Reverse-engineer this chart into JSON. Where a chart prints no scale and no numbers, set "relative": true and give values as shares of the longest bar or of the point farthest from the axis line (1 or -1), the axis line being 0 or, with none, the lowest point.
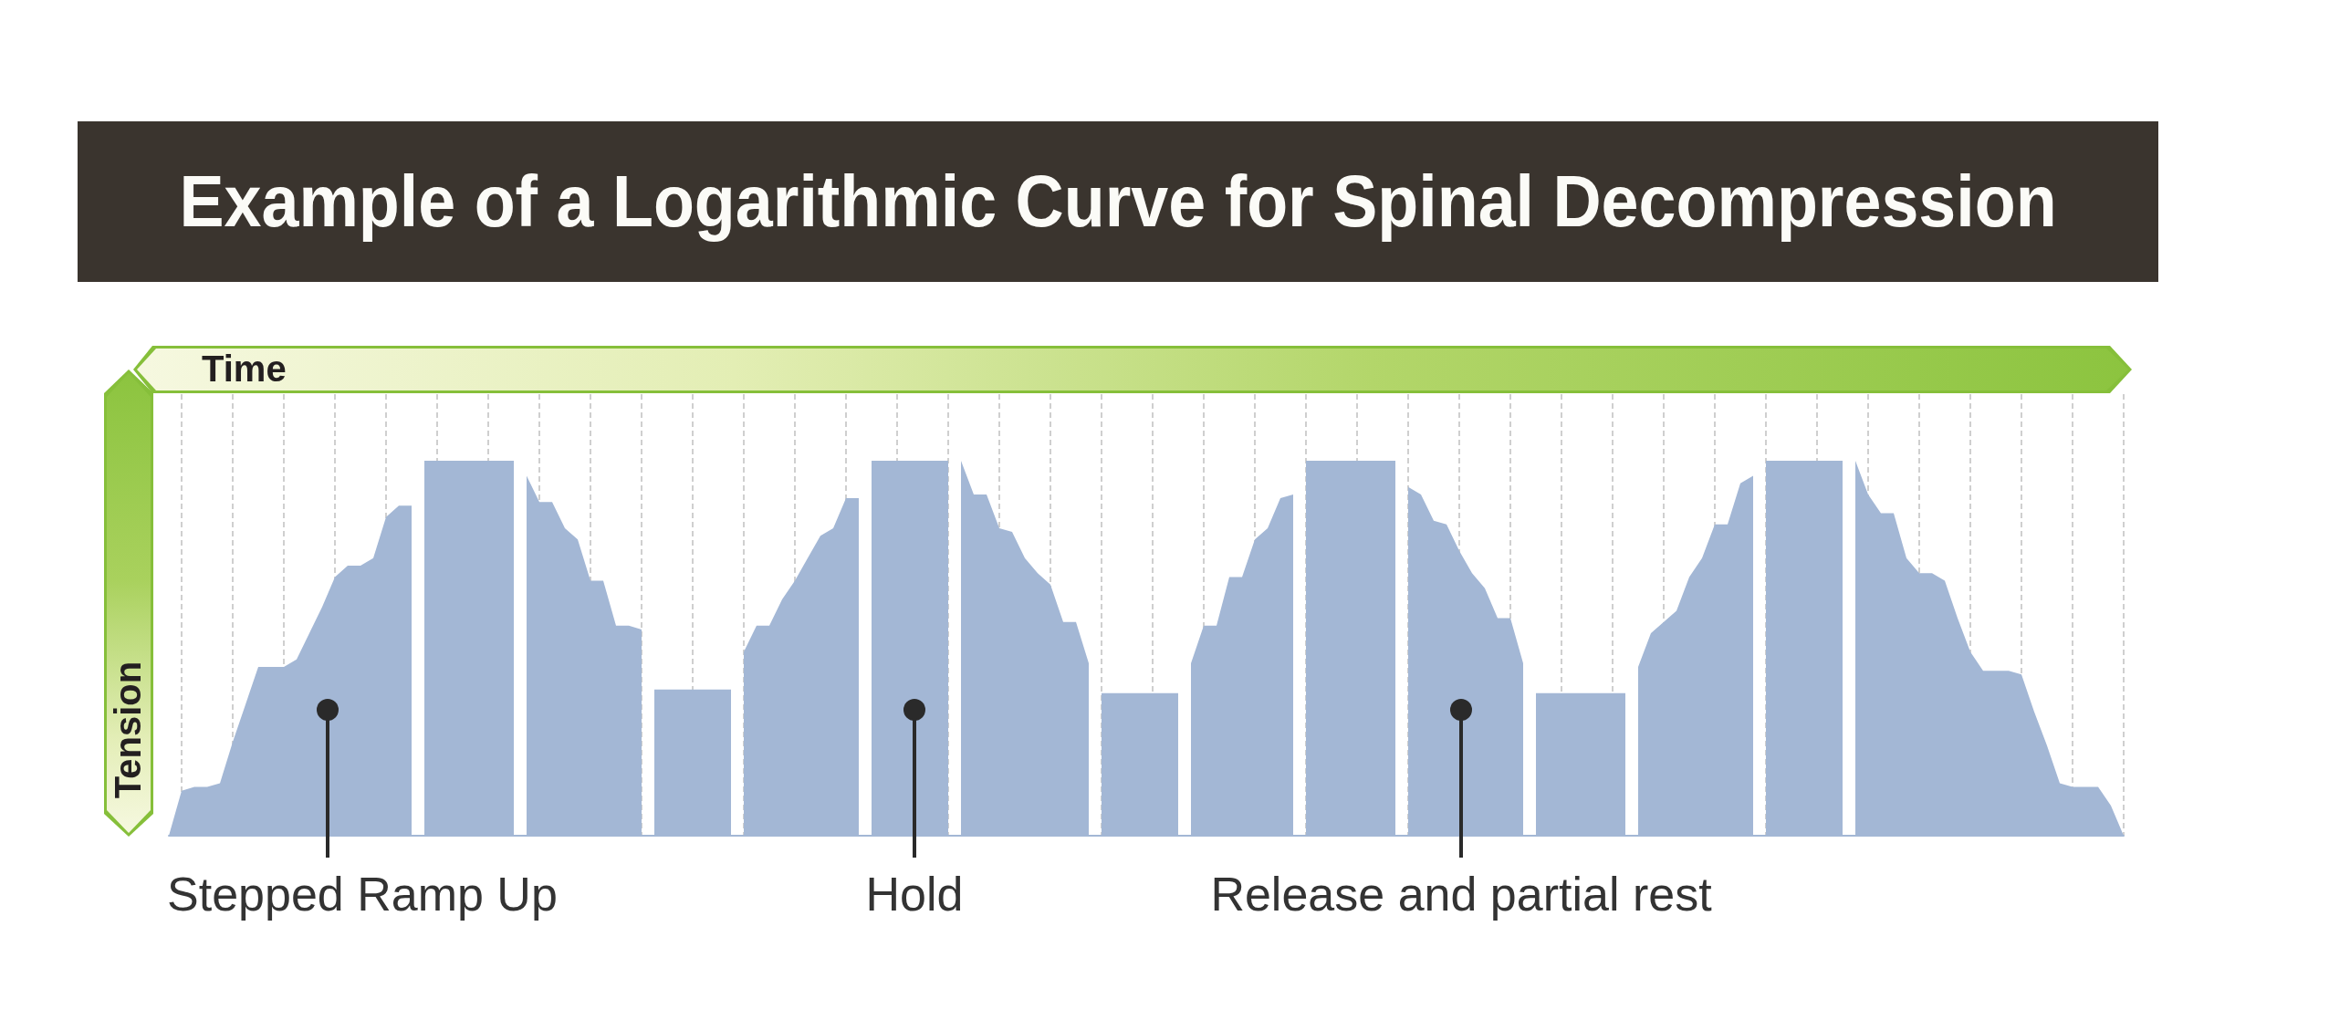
{
  "chart_data": {
    "type": "area",
    "relative": true,
    "grid": "x",
    "title": "Example of a Logarithmic Curve for Spinal Decompression",
    "xlabel": "Time",
    "ylabel": "Tension",
    "annotations": [
      "Stepped Ramp Up",
      "Hold",
      "Release and partial rest"
    ],
    "categories": [
      null,
      null,
      null,
      null,
      null,
      null,
      null,
      null,
      null,
      null,
      null,
      null,
      null,
      null,
      null,
      null,
      null,
      null,
      null,
      null,
      null,
      null,
      null,
      null,
      null,
      null,
      null,
      null,
      null,
      null,
      null,
      null,
      null,
      null,
      null,
      null,
      null,
      null,
      null,
      null,
      null,
      null,
      null,
      null,
      null,
      null,
      null,
      null,
      null,
      null,
      null,
      null,
      null,
      null,
      null,
      null,
      null,
      null,
      null,
      null,
      null,
      null,
      null,
      null,
      null,
      null,
      null,
      null,
      null,
      null,
      null,
      null,
      null,
      null,
      null,
      null,
      null,
      null,
      null,
      null,
      null,
      null,
      null,
      null,
      null,
      null,
      null,
      null,
      null,
      null,
      null,
      null,
      null,
      null,
      null,
      null,
      null,
      null,
      null,
      null,
      null,
      null,
      null,
      null,
      null,
      null,
      null,
      null,
      null,
      null,
      null,
      null,
      null,
      null,
      null,
      null,
      null,
      null,
      null,
      null,
      null,
      null,
      null,
      null,
      null,
      null,
      null,
      null,
      null,
      null,
      null,
      null,
      null,
      null,
      null,
      null,
      null,
      null,
      null,
      null,
      null,
      null,
      null,
      null,
      null,
      null,
      null,
      null,
      null,
      null,
      null,
      null,
      null,
      null
    ],
    "series": [
      {
        "color": "#a3b7d5",
        "values": [
          0,
          0.12,
          0.13,
          0.13,
          0.14,
          0.25,
          0.35,
          0.45,
          0.45,
          0.45,
          0.47,
          0.54,
          0.61,
          0.69,
          0.72,
          0.72,
          0.74,
          0.85,
          0.88,
          0.88,
          null,
          null,
          null,
          null,
          null,
          null,
          null,
          null,
          0.96,
          0.89,
          0.89,
          0.82,
          0.79,
          0.68,
          0.68,
          0.56,
          0.56,
          0.55,
          null,
          null,
          null,
          null,
          null,
          null,
          null,
          0.49,
          0.56,
          0.56,
          0.63,
          0.68,
          0.74,
          0.8,
          0.82,
          0.9,
          0.9,
          null,
          null,
          null,
          null,
          null,
          null,
          null,
          1,
          0.91,
          0.91,
          0.82,
          0.81,
          0.74,
          0.7,
          0.67,
          0.57,
          0.57,
          0.46,
          null,
          null,
          null,
          null,
          null,
          null,
          null,
          0.46,
          0.56,
          0.56,
          0.69,
          0.69,
          0.79,
          0.82,
          0.9,
          0.91,
          null,
          null,
          null,
          null,
          null,
          null,
          null,
          null,
          0.93,
          0.91,
          0.84,
          0.83,
          0.76,
          0.7,
          0.66,
          0.58,
          0.58,
          0.46,
          null,
          null,
          null,
          null,
          null,
          null,
          null,
          null,
          0.45,
          0.54,
          0.57,
          0.6,
          0.69,
          0.74,
          0.83,
          0.83,
          0.94,
          0.96,
          null,
          null,
          null,
          null,
          null,
          null,
          null,
          1,
          0.91,
          0.86,
          0.86,
          0.74,
          0.7,
          0.7,
          0.68,
          0.58,
          0.49,
          0.44,
          0.44,
          0.44,
          0.43,
          0.33,
          0.24,
          0.14,
          0.13,
          0.13,
          0.13,
          0.08,
          0
        ]
      },
      {
        "color": "#a3b7d5",
        "values": [
          null,
          null,
          null,
          null,
          null,
          null,
          null,
          null,
          null,
          null,
          null,
          null,
          null,
          null,
          null,
          null,
          null,
          null,
          null,
          null,
          1,
          1,
          1,
          1,
          1,
          1,
          1,
          1,
          null,
          null,
          null,
          null,
          null,
          null,
          null,
          null,
          null,
          null,
          0.39,
          0.39,
          0.39,
          0.39,
          0.39,
          0.39,
          0.39,
          null,
          null,
          null,
          null,
          null,
          null,
          null,
          null,
          null,
          null,
          1,
          1,
          1,
          1,
          1,
          1,
          1,
          null,
          null,
          null,
          null,
          null,
          null,
          null,
          null,
          null,
          null,
          null,
          0.38,
          0.38,
          0.38,
          0.38,
          0.38,
          0.38,
          0.38,
          null,
          null,
          null,
          null,
          null,
          null,
          null,
          null,
          null,
          1,
          1,
          1,
          1,
          1,
          1,
          1,
          1,
          null,
          null,
          null,
          null,
          null,
          null,
          null,
          null,
          null,
          null,
          0.38,
          0.38,
          0.38,
          0.38,
          0.38,
          0.38,
          0.38,
          0.38,
          null,
          null,
          null,
          null,
          null,
          null,
          null,
          null,
          null,
          null,
          1,
          1,
          1,
          1,
          1,
          1,
          1,
          null,
          null,
          null,
          null,
          null,
          null,
          null,
          null,
          null,
          null,
          null,
          null,
          null,
          null,
          null,
          null,
          null,
          null,
          null,
          null,
          null,
          null
        ]
      }
    ]
  }
}
